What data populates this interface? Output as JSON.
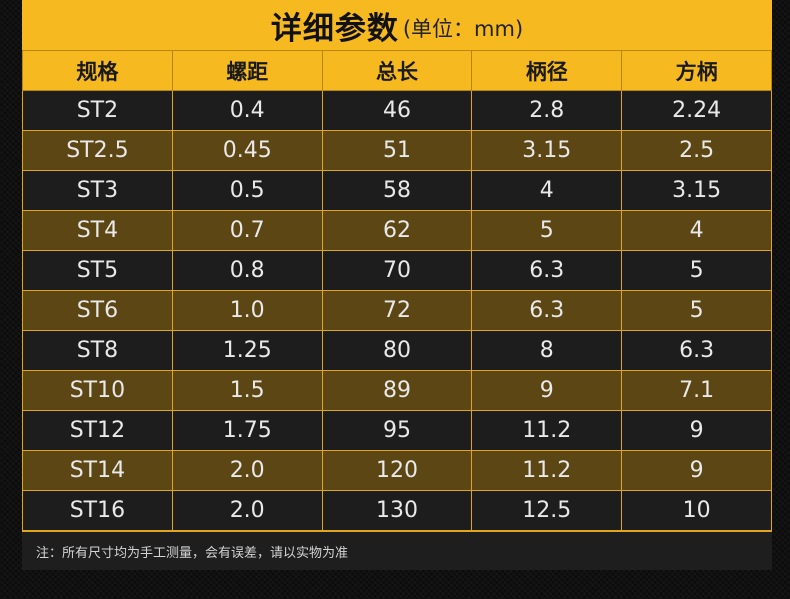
{
  "title": {
    "main": "详细参数",
    "unit": "(单位：mm)"
  },
  "table": {
    "headers": [
      "规格",
      "螺距",
      "总长",
      "柄径",
      "方柄"
    ],
    "rows": [
      [
        "ST2",
        "0.4",
        "46",
        "2.8",
        "2.24"
      ],
      [
        "ST2.5",
        "0.45",
        "51",
        "3.15",
        "2.5"
      ],
      [
        "ST3",
        "0.5",
        "58",
        "4",
        "3.15"
      ],
      [
        "ST4",
        "0.7",
        "62",
        "5",
        "4"
      ],
      [
        "ST5",
        "0.8",
        "70",
        "6.3",
        "5"
      ],
      [
        "ST6",
        "1.0",
        "72",
        "6.3",
        "5"
      ],
      [
        "ST8",
        "1.25",
        "80",
        "8",
        "6.3"
      ],
      [
        "ST10",
        "1.5",
        "89",
        "9",
        "7.1"
      ],
      [
        "ST12",
        "1.75",
        "95",
        "11.2",
        "9"
      ],
      [
        "ST14",
        "2.0",
        "120",
        "11.2",
        "9"
      ],
      [
        "ST16",
        "2.0",
        "130",
        "12.5",
        "10"
      ]
    ]
  },
  "note": "注：所有尺寸均为手工测量，会有误差，请以实物为准",
  "colors": {
    "accent": "#f6ba20",
    "row_dark": "#1d1d1d",
    "row_gold": "#5b4614",
    "text": "#e9e9e9"
  }
}
